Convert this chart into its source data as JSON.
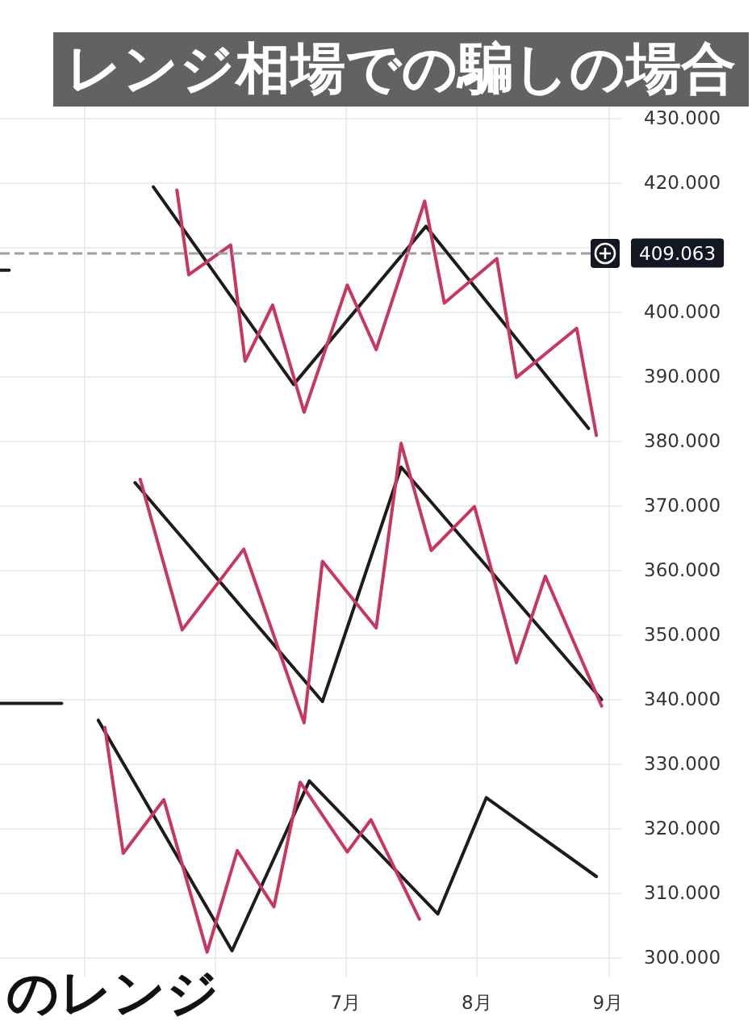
{
  "chart_data": {
    "type": "line",
    "title": "レンジ相場での騙しの場合",
    "annotations": [
      "のレンジ"
    ],
    "xlim": [
      4.36,
      9.1
    ],
    "xticks": [
      {
        "value": 5,
        "label": null
      },
      {
        "value": 6,
        "label": null
      },
      {
        "value": 7,
        "label": "7月"
      },
      {
        "value": 8,
        "label": "8月"
      },
      {
        "value": 9,
        "label": "9月"
      }
    ],
    "ylim": [
      297,
      440
    ],
    "yticks": [
      {
        "value": 300,
        "label": "300.000"
      },
      {
        "value": 310,
        "label": "310.000"
      },
      {
        "value": 320,
        "label": "320.000"
      },
      {
        "value": 330,
        "label": "330.000"
      },
      {
        "value": 340,
        "label": "340.000"
      },
      {
        "value": 350,
        "label": "350.000"
      },
      {
        "value": 360,
        "label": "360.000"
      },
      {
        "value": 370,
        "label": "370.000"
      },
      {
        "value": 380,
        "label": "380.000"
      },
      {
        "value": 390,
        "label": "390.000"
      },
      {
        "value": 400,
        "label": "400.000"
      },
      {
        "value": 410,
        "label": null
      },
      {
        "value": 420,
        "label": "420.000"
      },
      {
        "value": 430,
        "label": "430.000"
      }
    ],
    "grid": true,
    "marker": "none",
    "line_style": "solid",
    "ref_lines": [
      {
        "axis": "y",
        "value": 409.063,
        "label": "409.063",
        "color": "#a0a0a0",
        "line_style": "dashed"
      }
    ],
    "series": [
      {
        "color": "#1c1c1c",
        "x": [
          5.53,
          6.6,
          7.61,
          8.85
        ],
        "values": [
          419.3,
          388.7,
          413.2,
          381.9
        ]
      },
      {
        "color": "#c8385e",
        "x": [
          5.71,
          5.8,
          6.12,
          6.23,
          6.44,
          6.68,
          7.01,
          7.23,
          7.6,
          7.75,
          8.15,
          8.3,
          8.76,
          8.91
        ],
        "values": [
          418.8,
          405.7,
          410.3,
          392.3,
          401.0,
          384.4,
          404.1,
          394.1,
          417.1,
          401.3,
          408.2,
          389.8,
          397.4,
          380.8
        ]
      },
      {
        "color": "#1c1c1c",
        "x": [
          5.39,
          6.82,
          7.42,
          8.95
        ],
        "values": [
          373.5,
          339.6,
          375.9,
          339.9
        ]
      },
      {
        "color": "#c8385e",
        "x": [
          5.43,
          5.75,
          6.22,
          6.68,
          6.82,
          7.23,
          7.42,
          7.65,
          7.98,
          8.3,
          8.52,
          8.95
        ],
        "values": [
          374.0,
          350.7,
          363.2,
          336.3,
          361.3,
          351.0,
          379.6,
          363.0,
          369.8,
          345.6,
          359.0,
          338.9
        ]
      },
      {
        "color": "#1c1c1c",
        "x": [
          5.11,
          6.13,
          6.72,
          7.7,
          8.07,
          8.91
        ],
        "values": [
          336.7,
          301.0,
          327.3,
          306.7,
          324.7,
          312.5
        ]
      },
      {
        "color": "#c8385e",
        "x": [
          5.16,
          5.3,
          5.61,
          5.94,
          6.17,
          6.45,
          6.65,
          7.01,
          7.19,
          7.56
        ],
        "values": [
          335.6,
          316.1,
          324.4,
          300.8,
          316.5,
          307.8,
          327.1,
          316.3,
          321.3,
          305.9
        ]
      },
      {
        "color": "#1c1c1c",
        "x": [
          4.36,
          4.83
        ],
        "values": [
          339.3,
          339.3
        ]
      },
      {
        "color": "#1c1c1c",
        "x": [
          4.36,
          4.43
        ],
        "values": [
          406.4,
          406.4
        ]
      }
    ]
  }
}
